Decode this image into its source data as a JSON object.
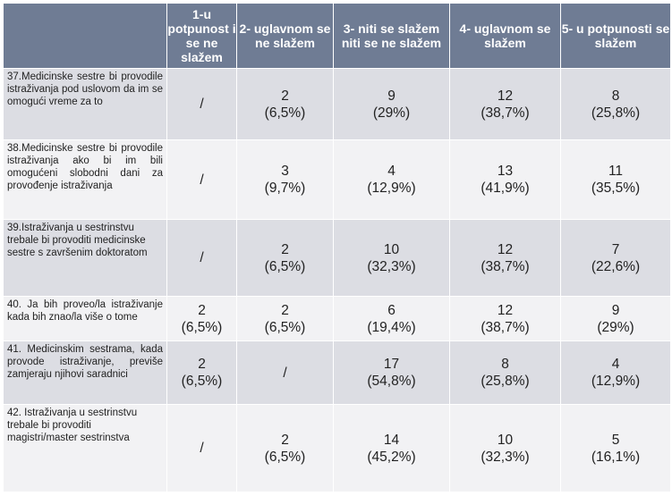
{
  "headers": [
    "",
    "1-u potpunost i se ne slažem",
    "2- uglavnom se ne slažem",
    "3- niti se slažem niti se ne slažem",
    "4- uglavnom se slažem",
    "5- u potpunosti se slažem"
  ],
  "rows": [
    {
      "question": "37.Medicinske sestre bi provodile istraživanja pod uslovom da im se omogući vreme za to",
      "c1": [
        "/",
        ""
      ],
      "c2": [
        "2",
        "(6,5%)"
      ],
      "c3": [
        "9",
        "(29%)"
      ],
      "c4": [
        "12",
        "(38,7%)"
      ],
      "c5": [
        "8",
        "(25,8%)"
      ]
    },
    {
      "question": "38.Medicinske sestre bi provodile istraživanja ako bi im bili omogućeni slobodni dani za provođenje istraživanja",
      "c1": [
        "/",
        ""
      ],
      "c2": [
        "3",
        "(9,7%)"
      ],
      "c3": [
        "4",
        "(12,9%)"
      ],
      "c4": [
        "13",
        "(41,9%)"
      ],
      "c5": [
        "11",
        "(35,5%)"
      ]
    },
    {
      "question": "39.Istraživanja u sestrinstvu trebale bi provoditi medicinske sestre s završenim doktoratom",
      "c1": [
        "/",
        ""
      ],
      "c2": [
        "2",
        "(6,5%)"
      ],
      "c3": [
        "10",
        "(32,3%)"
      ],
      "c4": [
        "12",
        "(38,7%)"
      ],
      "c5": [
        "7",
        "(22,6%)"
      ]
    },
    {
      "question": "40. Ja bih proveo/la istraživanje kada bih znao/la više o tome",
      "c1": [
        "2",
        "(6,5%)"
      ],
      "c2": [
        "2",
        "(6,5%)"
      ],
      "c3": [
        "6",
        "(19,4%)"
      ],
      "c4": [
        "12",
        "(38,7%)"
      ],
      "c5": [
        "9",
        "(29%)"
      ]
    },
    {
      "question": "41. Medicinskim sestrama, kada provode istraživanje, previše zamjeraju njihovi saradnici",
      "c1": [
        "2",
        "(6,5%)"
      ],
      "c2": [
        "/",
        ""
      ],
      "c3": [
        "17",
        "(54,8%)"
      ],
      "c4": [
        "8",
        "(25,8%)"
      ],
      "c5": [
        "4",
        "(12,9%)"
      ]
    },
    {
      "question": "42. Istraživanja u sestrinstvu trebale bi provoditi magistri/master sestrinstva",
      "c1": [
        "/",
        ""
      ],
      "c2": [
        "2",
        "(6,5%)"
      ],
      "c3": [
        "14",
        "(45,2%)"
      ],
      "c4": [
        "10",
        "(32,3%)"
      ],
      "c5": [
        "5",
        "(16,1%)"
      ]
    }
  ]
}
